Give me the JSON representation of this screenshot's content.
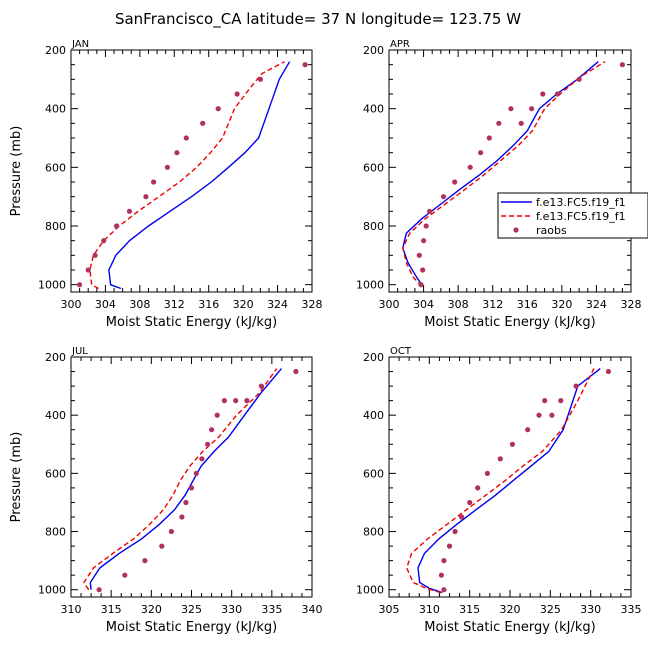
{
  "title": "SanFrancisco_CA  latitude= 37 N longitude= 123.75 W",
  "colors": {
    "model1": "#0000ee",
    "model2": "#ee0000",
    "raobs": "#b03060",
    "axis": "#000000"
  },
  "legend": {
    "entries": [
      {
        "label": "f.e13.FC5.f19_f1",
        "style": "solid"
      },
      {
        "label": "f.e13.FC5.f19_f1",
        "style": "dashed"
      },
      {
        "label": "raobs",
        "style": "dot"
      }
    ]
  },
  "chart_data": [
    {
      "type": "line",
      "panel": "JAN",
      "title": "JAN",
      "xlabel": "Moist Static Energy (kJ/kg)",
      "ylabel": "Pressure (mb)",
      "xlim": [
        300,
        328
      ],
      "ylim": [
        1025,
        200
      ],
      "xticks": [
        300,
        304,
        308,
        312,
        316,
        320,
        324,
        328
      ],
      "yticks": [
        200,
        400,
        600,
        800,
        1000
      ],
      "series": [
        {
          "name": "f.e13.FC5.f19_f1 (solid)",
          "x": [
            305.8,
            304.6,
            304.4,
            305.2,
            306.8,
            309.0,
            311.5,
            314.0,
            316.3,
            318.3,
            320.2,
            321.8,
            323.0,
            324.2,
            325.4
          ],
          "y": [
            1013,
            1000,
            950,
            900,
            850,
            800,
            750,
            700,
            650,
            600,
            550,
            500,
            400,
            300,
            240
          ]
        },
        {
          "name": "f.e13.FC5.f19_f1 (dashed)",
          "x": [
            303.2,
            302.4,
            302.2,
            302.6,
            303.8,
            305.6,
            307.8,
            310.2,
            312.6,
            314.6,
            316.2,
            317.6,
            319.0,
            320.8,
            322.2,
            324.8
          ],
          "y": [
            1013,
            1000,
            950,
            900,
            850,
            800,
            750,
            700,
            650,
            600,
            550,
            500,
            400,
            330,
            280,
            240
          ]
        }
      ],
      "raobs": {
        "x": [
          301.0,
          302.0,
          302.8,
          303.8,
          305.3,
          306.8,
          308.7,
          309.6,
          311.2,
          312.3,
          313.4,
          315.3,
          317.1,
          319.3,
          322.0,
          327.2
        ],
        "y": [
          1000,
          950,
          900,
          850,
          800,
          750,
          700,
          650,
          600,
          550,
          500,
          450,
          400,
          350,
          300,
          250
        ]
      }
    },
    {
      "type": "line",
      "panel": "APR",
      "title": "APR",
      "xlabel": "Moist Static Energy (kJ/kg)",
      "ylabel": "",
      "xlim": [
        300,
        328
      ],
      "ylim": [
        1025,
        200
      ],
      "xticks": [
        300,
        304,
        308,
        312,
        316,
        320,
        324,
        328
      ],
      "yticks": [
        200,
        400,
        600,
        800,
        1000
      ],
      "series": [
        {
          "name": "f.e13.FC5.f19_f1 (solid)",
          "x": [
            303.9,
            303.2,
            302.2,
            301.6,
            302.0,
            303.8,
            306.0,
            308.2,
            310.5,
            312.6,
            314.4,
            316.0,
            317.4,
            319.4,
            321.8,
            324.2
          ],
          "y": [
            1005,
            975,
            925,
            875,
            825,
            775,
            725,
            675,
            625,
            575,
            525,
            475,
            400,
            350,
            300,
            240
          ]
        },
        {
          "name": "f.e13.FC5.f19_f1 (dashed)",
          "x": [
            303.8,
            302.8,
            302.0,
            301.6,
            302.4,
            304.2,
            306.5,
            308.8,
            311.0,
            313.0,
            315.0,
            316.6,
            318.0,
            319.8,
            322.2,
            325.0
          ],
          "y": [
            1005,
            975,
            925,
            875,
            825,
            775,
            725,
            675,
            625,
            575,
            525,
            475,
            400,
            350,
            290,
            240
          ]
        }
      ],
      "raobs": {
        "x": [
          303.7,
          303.9,
          303.5,
          304.0,
          304.3,
          304.7,
          306.3,
          307.6,
          309.4,
          310.6,
          311.6,
          312.7,
          314.1,
          315.3,
          316.5,
          317.8,
          319.5,
          322.0,
          327.0
        ],
        "y": [
          1000,
          950,
          900,
          850,
          800,
          750,
          700,
          650,
          600,
          550,
          500,
          450,
          400,
          450,
          400,
          350,
          350,
          300,
          250
        ]
      }
    },
    {
      "type": "line",
      "panel": "JUL",
      "title": "JUL",
      "xlabel": "Moist Static Energy (kJ/kg)",
      "ylabel": "Pressure (mb)",
      "xlim": [
        310,
        340
      ],
      "ylim": [
        1025,
        200
      ],
      "xticks": [
        310,
        315,
        320,
        325,
        330,
        335,
        340
      ],
      "yticks": [
        200,
        400,
        600,
        800,
        1000
      ],
      "series": [
        {
          "name": "f.e13.FC5.f19_f1 (solid)",
          "x": [
            312.5,
            312.4,
            313.6,
            316.0,
            318.8,
            321.0,
            322.9,
            324.2,
            325.2,
            326.2,
            327.8,
            329.6,
            331.6,
            333.6,
            336.2
          ],
          "y": [
            1000,
            975,
            925,
            875,
            825,
            775,
            725,
            675,
            625,
            575,
            525,
            475,
            400,
            325,
            240
          ]
        },
        {
          "name": "f.e13.FC5.f19_f1 (dashed)",
          "x": [
            312.2,
            311.6,
            312.8,
            315.2,
            317.8,
            319.8,
            321.5,
            322.7,
            323.6,
            324.8,
            326.4,
            328.4,
            330.6,
            333.4,
            335.6
          ],
          "y": [
            1000,
            975,
            925,
            875,
            825,
            775,
            725,
            675,
            625,
            575,
            525,
            475,
            400,
            325,
            240
          ]
        }
      ],
      "raobs": {
        "x": [
          313.5,
          316.7,
          319.2,
          321.3,
          322.5,
          323.8,
          324.3,
          325.0,
          325.6,
          326.3,
          327.0,
          327.5,
          328.2,
          329.1,
          330.5,
          331.9,
          333.7,
          338.0
        ],
        "y": [
          1000,
          950,
          900,
          850,
          800,
          750,
          700,
          650,
          600,
          550,
          500,
          450,
          400,
          350,
          350,
          350,
          300,
          250
        ]
      }
    },
    {
      "type": "line",
      "panel": "OCT",
      "title": "OCT",
      "xlabel": "Moist Static Energy (kJ/kg)",
      "ylabel": "",
      "xlim": [
        305,
        335
      ],
      "ylim": [
        1025,
        200
      ],
      "xticks": [
        305,
        310,
        315,
        320,
        325,
        330,
        335
      ],
      "yticks": [
        200,
        400,
        600,
        800,
        1000
      ],
      "series": [
        {
          "name": "f.e13.FC5.f19_f1 (solid)",
          "x": [
            311.6,
            310.0,
            308.8,
            308.6,
            309.4,
            311.2,
            313.4,
            315.8,
            318.2,
            320.4,
            322.6,
            324.8,
            326.6,
            328.4,
            331.2
          ],
          "y": [
            1010,
            995,
            975,
            925,
            875,
            825,
            775,
            725,
            675,
            625,
            575,
            525,
            450,
            300,
            240
          ]
        },
        {
          "name": "f.e13.FC5.f19_f1 (dashed)",
          "x": [
            311.4,
            309.6,
            308.0,
            307.2,
            307.8,
            309.8,
            312.2,
            314.6,
            317.0,
            319.4,
            321.6,
            324.0,
            326.4,
            328.4,
            330.4
          ],
          "y": [
            1010,
            995,
            975,
            925,
            875,
            825,
            775,
            725,
            675,
            625,
            575,
            525,
            450,
            350,
            240
          ]
        }
      ],
      "raobs": {
        "x": [
          311.8,
          311.5,
          311.8,
          312.5,
          313.2,
          314.0,
          315.0,
          316.0,
          317.2,
          318.8,
          320.3,
          322.2,
          323.6,
          324.3,
          325.2,
          326.3,
          328.2,
          332.2
        ],
        "y": [
          1000,
          950,
          900,
          850,
          800,
          750,
          700,
          650,
          600,
          550,
          500,
          450,
          400,
          350,
          400,
          350,
          300,
          250
        ]
      }
    }
  ]
}
